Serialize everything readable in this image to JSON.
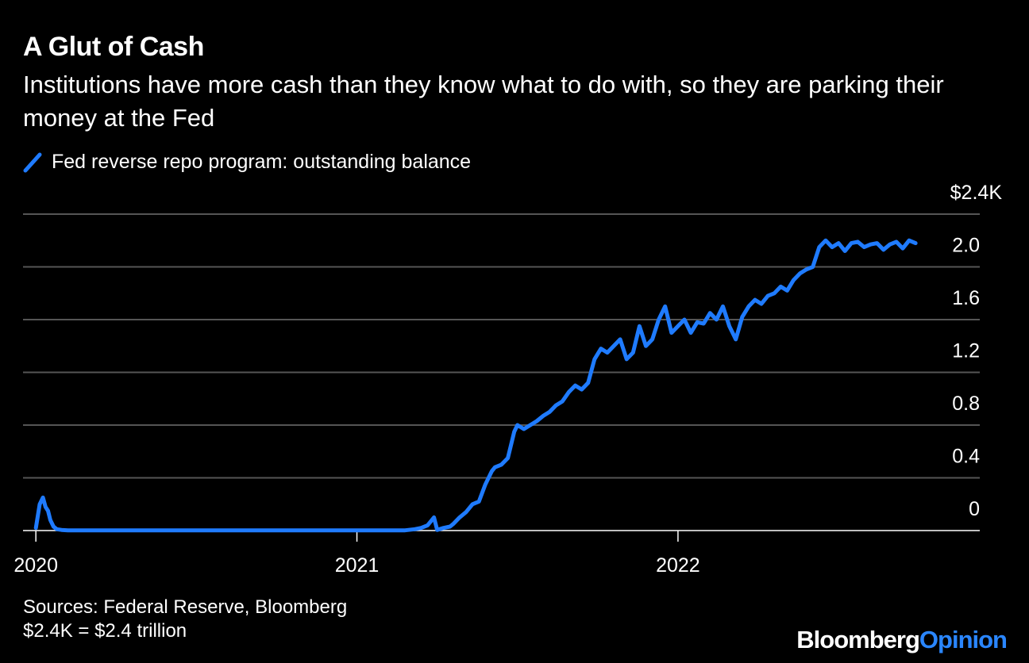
{
  "header": {
    "title": "A Glut of Cash",
    "subtitle": "Institutions have more cash than they know what to do with, so they are parking their money at the Fed"
  },
  "legend": {
    "label": "Fed reverse repo program: outstanding balance"
  },
  "footer": {
    "sources": "Sources: Federal Reserve, Bloomberg",
    "note": "$2.4K = $2.4 trillion"
  },
  "brand": {
    "part1": "Bloomberg",
    "part2": "Opinion"
  },
  "colors": {
    "series": "#1f7bff",
    "grid": "#555555",
    "background": "#000000",
    "brand_accent": "#2a86ff"
  },
  "chart_data": {
    "type": "line",
    "title": "A Glut of Cash",
    "ylabel": "",
    "xlabel": "",
    "ylim": [
      0,
      2.4
    ],
    "yticks": [
      0,
      0.4,
      0.8,
      1.2,
      1.6,
      2.0
    ],
    "ytick_labels": [
      "0",
      "0.4",
      "0.8",
      "1.2",
      "1.6",
      "2.0"
    ],
    "top_label": "$2.4K",
    "xticks": [
      2020.0,
      2021.0,
      2022.0
    ],
    "xtick_labels": [
      "2020",
      "2021",
      "2022"
    ],
    "xlim": [
      2019.96,
      2022.94
    ],
    "series": [
      {
        "name": "Fed reverse repo program: outstanding balance",
        "x": [
          2020.0,
          2020.012,
          2020.022,
          2020.03,
          2020.038,
          2020.045,
          2020.055,
          2020.065,
          2020.08,
          2020.1,
          2020.12,
          2020.15,
          2020.2,
          2020.4,
          2020.6,
          2020.8,
          2020.99,
          2021.01,
          2021.1,
          2021.15,
          2021.18,
          2021.2,
          2021.22,
          2021.24,
          2021.25,
          2021.27,
          2021.29,
          2021.3,
          2021.32,
          2021.34,
          2021.36,
          2021.38,
          2021.4,
          2021.42,
          2021.43,
          2021.45,
          2021.47,
          2021.49,
          2021.5,
          2021.52,
          2021.54,
          2021.56,
          2021.58,
          2021.6,
          2021.62,
          2021.64,
          2021.66,
          2021.68,
          2021.7,
          2021.72,
          2021.74,
          2021.76,
          2021.78,
          2021.8,
          2021.82,
          2021.84,
          2021.86,
          2021.88,
          2021.9,
          2021.92,
          2021.94,
          2021.96,
          2021.98,
          2022.0,
          2022.02,
          2022.04,
          2022.06,
          2022.08,
          2022.1,
          2022.12,
          2022.14,
          2022.16,
          2022.18,
          2022.2,
          2022.22,
          2022.24,
          2022.26,
          2022.28,
          2022.3,
          2022.32,
          2022.34,
          2022.36,
          2022.38,
          2022.4,
          2022.42,
          2022.44,
          2022.46,
          2022.48,
          2022.5,
          2022.52,
          2022.54,
          2022.56,
          2022.58,
          2022.6,
          2022.62,
          2022.64,
          2022.66,
          2022.68,
          2022.7,
          2022.72,
          2022.74
        ],
        "values": [
          0.02,
          0.2,
          0.25,
          0.18,
          0.15,
          0.08,
          0.03,
          0.01,
          0.005,
          0.002,
          0.001,
          0.001,
          0.001,
          0.001,
          0.001,
          0.001,
          0.001,
          0.001,
          0.001,
          0.002,
          0.01,
          0.02,
          0.04,
          0.1,
          0.005,
          0.02,
          0.03,
          0.05,
          0.1,
          0.14,
          0.2,
          0.22,
          0.35,
          0.45,
          0.48,
          0.5,
          0.55,
          0.75,
          0.8,
          0.77,
          0.8,
          0.83,
          0.87,
          0.9,
          0.95,
          0.98,
          1.05,
          1.1,
          1.07,
          1.12,
          1.3,
          1.38,
          1.35,
          1.4,
          1.45,
          1.3,
          1.35,
          1.55,
          1.4,
          1.45,
          1.6,
          1.7,
          1.5,
          1.55,
          1.6,
          1.5,
          1.58,
          1.57,
          1.65,
          1.6,
          1.7,
          1.55,
          1.45,
          1.62,
          1.7,
          1.75,
          1.72,
          1.78,
          1.8,
          1.85,
          1.82,
          1.9,
          1.95,
          1.98,
          2.0,
          2.15,
          2.2,
          2.15,
          2.18,
          2.12,
          2.18,
          2.19,
          2.15,
          2.17,
          2.18,
          2.13,
          2.17,
          2.19,
          2.14,
          2.2,
          2.18
        ]
      }
    ]
  }
}
